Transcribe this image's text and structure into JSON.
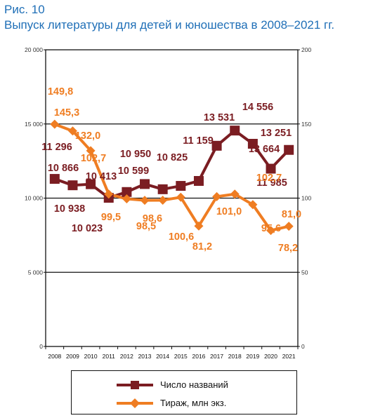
{
  "figure": {
    "label": "Рис. 10",
    "title": "Выпуск литературы для детей и юношества в 2008–2021 гг."
  },
  "chart_data": {
    "type": "line",
    "x": [
      "2008",
      "2009",
      "2010",
      "2011",
      "2012",
      "2013",
      "2014",
      "2015",
      "2016",
      "2017",
      "2018",
      "2019",
      "2020",
      "2021"
    ],
    "y_left": {
      "ticks": [
        "0",
        "5 000",
        "10 000",
        "15 000",
        "20 000"
      ],
      "range": [
        0,
        20000
      ]
    },
    "y_right": {
      "ticks": [
        "0",
        "50",
        "100",
        "150",
        "200"
      ],
      "range": [
        0,
        200
      ]
    },
    "grid": "horizontal",
    "legend_position": "bottom",
    "series": [
      {
        "name": "Число названий",
        "axis": "left",
        "color": "#7b1d22",
        "marker": "square",
        "values": [
          11296,
          10866,
          10938,
          10023,
          10413,
          10950,
          10599,
          10825,
          11159,
          13531,
          14556,
          13664,
          11985,
          13251
        ],
        "labels": [
          "11 296",
          "10 866",
          "10 938",
          "10 023",
          "10 413",
          "10 950",
          "10 599",
          "10 825",
          "11 159",
          "13 531",
          "14 556",
          "13 664",
          "11 985",
          "13 251"
        ]
      },
      {
        "name": "Тираж, млн экз.",
        "axis": "right",
        "color": "#ef7d22",
        "marker": "diamond",
        "values": [
          149.8,
          145.3,
          132.0,
          102.7,
          99.5,
          98.5,
          98.6,
          100.6,
          81.2,
          101.0,
          102.7,
          95.6,
          78.2,
          81.0
        ],
        "labels": [
          "149,8",
          "145,3",
          "132,0",
          "102,7",
          "99,5",
          "98,5",
          "98,6",
          "100,6",
          "81,2",
          "101,0",
          "102,7",
          "95,6",
          "78,2",
          "81,0"
        ]
      }
    ]
  }
}
